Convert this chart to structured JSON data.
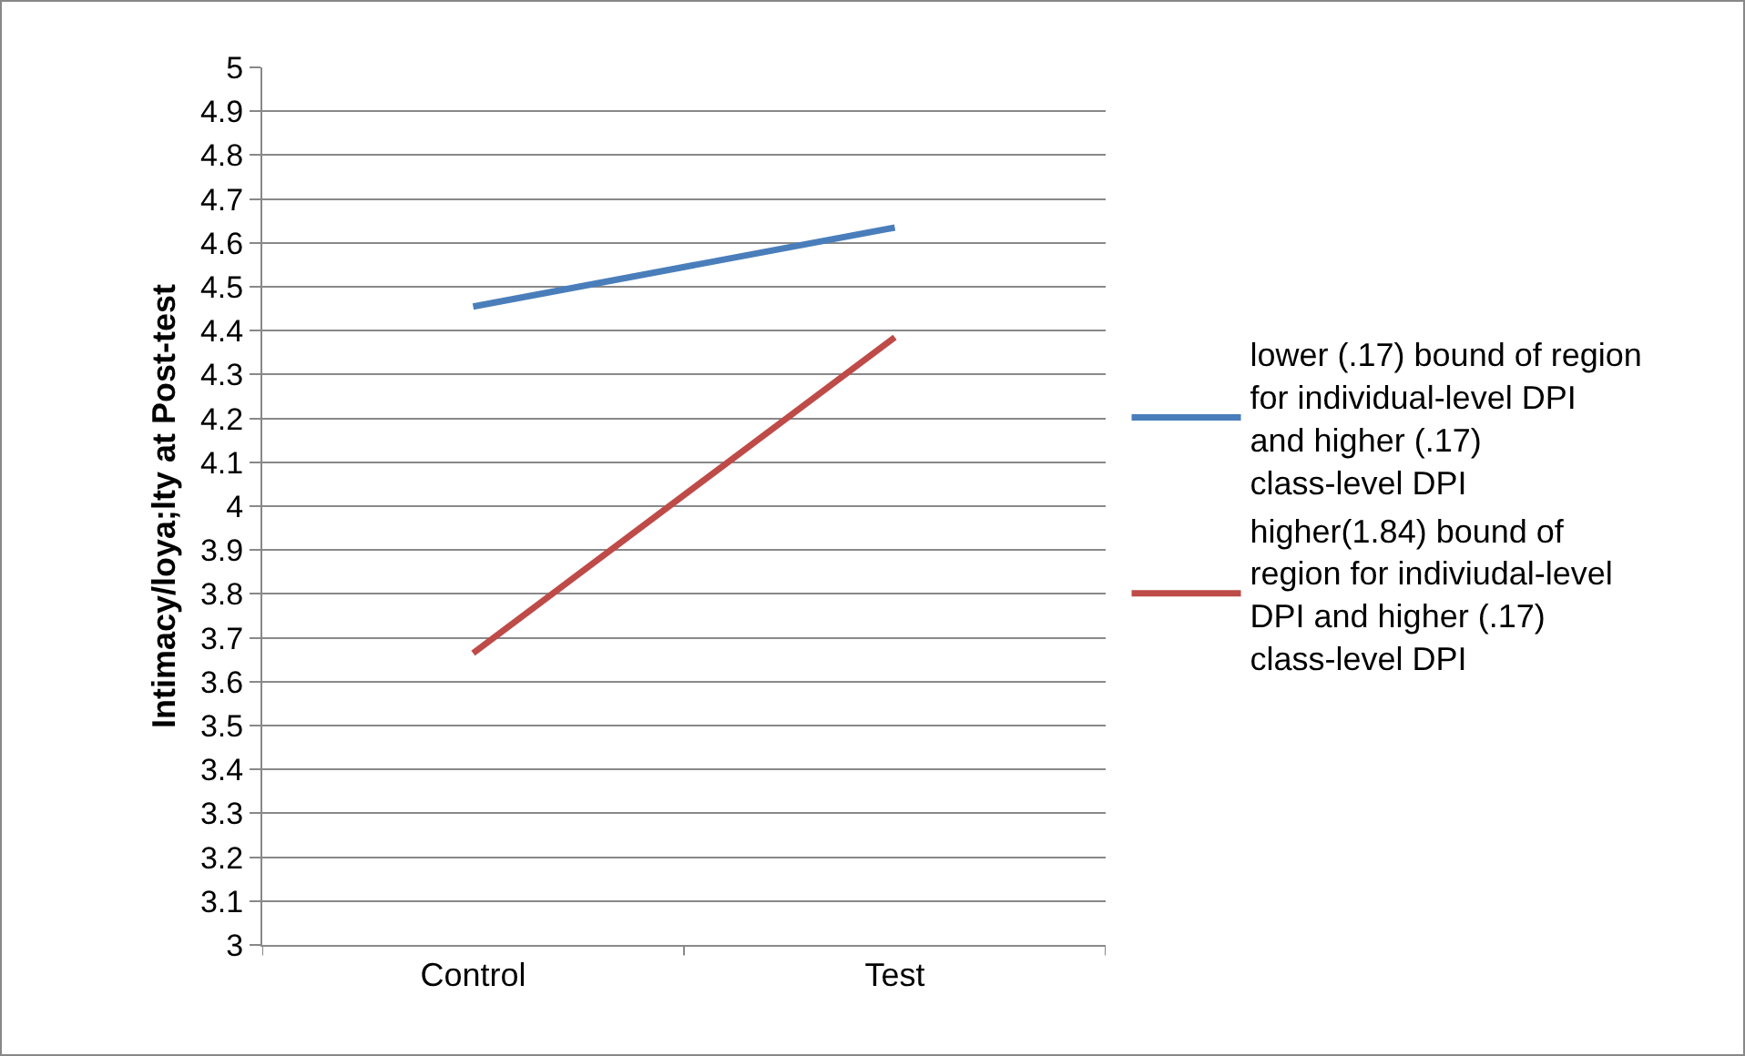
{
  "chart_data": {
    "type": "line",
    "ylabel": "Intimacy/loya;lty at Post-test",
    "categories": [
      "Control",
      "Test"
    ],
    "series": [
      {
        "name": "lower (.17) bound of region for individual-level DPI and higher (.17) class-level DPI",
        "color": "#4a7ebb",
        "values": [
          4.455,
          4.635
        ]
      },
      {
        "name": "higher(1.84) bound of region for indiviudal-level DPI and higher (.17) class-level DPI",
        "color": "#be4b48",
        "values": [
          3.665,
          4.385
        ]
      }
    ],
    "ylim": [
      3,
      5
    ],
    "yticks": [
      3,
      3.1,
      3.2,
      3.3,
      3.4,
      3.5,
      3.6,
      3.7,
      3.8,
      3.9,
      4,
      4.1,
      4.2,
      4.3,
      4.4,
      4.5,
      4.6,
      4.7,
      4.8,
      4.9,
      5
    ],
    "grid": "y",
    "legend": "right",
    "marker": "none",
    "line_style": "solid"
  }
}
